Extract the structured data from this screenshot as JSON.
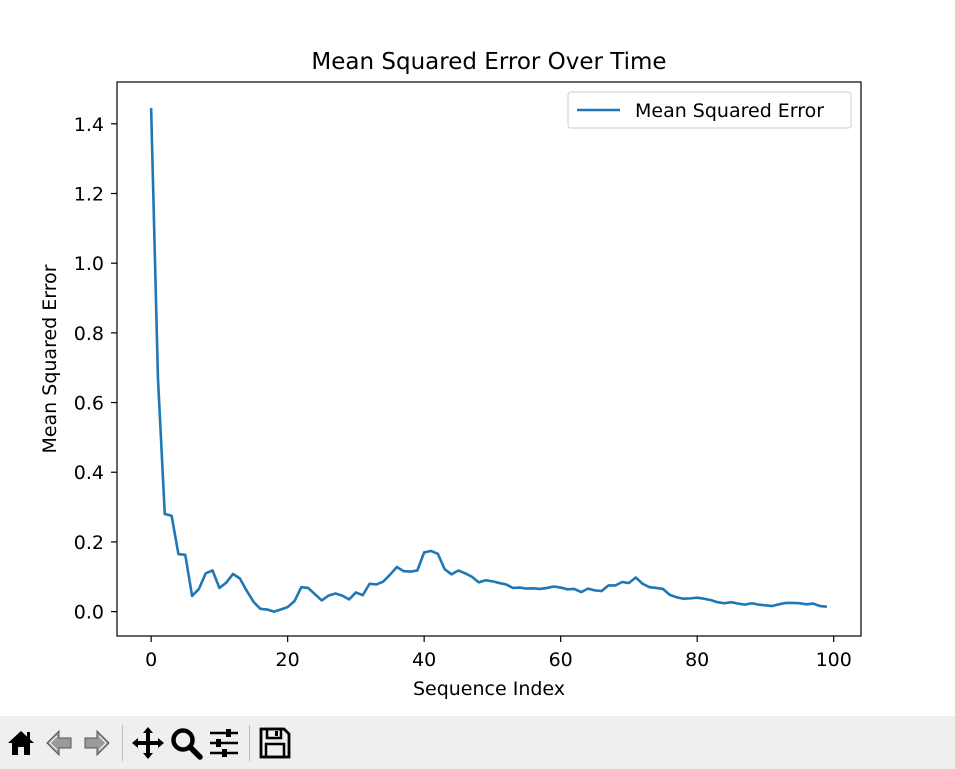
{
  "chart_data": {
    "type": "line",
    "title": "Mean Squared Error Over Time",
    "xlabel": "Sequence Index",
    "ylabel": "Mean Squared Error",
    "xlim": [
      -5,
      104
    ],
    "ylim": [
      -0.07,
      1.52
    ],
    "xticks": [
      0,
      20,
      40,
      60,
      80,
      100
    ],
    "yticks": [
      0.0,
      0.2,
      0.4,
      0.6,
      0.8,
      1.0,
      1.2,
      1.4
    ],
    "xtick_labels": [
      "0",
      "20",
      "40",
      "60",
      "80",
      "100"
    ],
    "ytick_labels": [
      "0.0",
      "0.2",
      "0.4",
      "0.6",
      "0.8",
      "1.0",
      "1.2",
      "1.4"
    ],
    "grid": false,
    "legend_position": "upper right",
    "series": [
      {
        "name": "Mean Squared Error",
        "color": "#1f77b4",
        "x": [
          0,
          1,
          2,
          3,
          4,
          5,
          6,
          7,
          8,
          9,
          10,
          11,
          12,
          13,
          14,
          15,
          16,
          17,
          18,
          19,
          20,
          21,
          22,
          23,
          24,
          25,
          26,
          27,
          28,
          29,
          30,
          31,
          32,
          33,
          34,
          35,
          36,
          37,
          38,
          39,
          40,
          41,
          42,
          43,
          44,
          45,
          46,
          47,
          48,
          49,
          50,
          51,
          52,
          53,
          54,
          55,
          56,
          57,
          58,
          59,
          60,
          61,
          62,
          63,
          64,
          65,
          66,
          67,
          68,
          69,
          70,
          71,
          72,
          73,
          74,
          75,
          76,
          77,
          78,
          79,
          80,
          81,
          82,
          83,
          84,
          85,
          86,
          87,
          88,
          89,
          90,
          91,
          92,
          93,
          94,
          95,
          96,
          97,
          98,
          99
        ],
        "y": [
          1.445,
          0.67,
          0.28,
          0.275,
          0.165,
          0.163,
          0.045,
          0.065,
          0.11,
          0.118,
          0.068,
          0.083,
          0.108,
          0.095,
          0.06,
          0.028,
          0.008,
          0.006,
          0.0,
          0.006,
          0.013,
          0.03,
          0.07,
          0.068,
          0.05,
          0.032,
          0.046,
          0.052,
          0.046,
          0.035,
          0.055,
          0.047,
          0.08,
          0.078,
          0.086,
          0.106,
          0.128,
          0.116,
          0.115,
          0.118,
          0.17,
          0.174,
          0.166,
          0.122,
          0.107,
          0.118,
          0.11,
          0.1,
          0.084,
          0.09,
          0.087,
          0.082,
          0.078,
          0.068,
          0.069,
          0.066,
          0.067,
          0.065,
          0.068,
          0.072,
          0.069,
          0.064,
          0.065,
          0.056,
          0.066,
          0.061,
          0.059,
          0.075,
          0.075,
          0.085,
          0.082,
          0.098,
          0.08,
          0.07,
          0.068,
          0.065,
          0.048,
          0.041,
          0.037,
          0.038,
          0.04,
          0.037,
          0.033,
          0.027,
          0.024,
          0.027,
          0.023,
          0.02,
          0.024,
          0.02,
          0.018,
          0.016,
          0.021,
          0.025,
          0.025,
          0.024,
          0.021,
          0.023,
          0.016,
          0.014
        ]
      }
    ]
  },
  "toolbar": {
    "buttons": [
      {
        "icon": "home-icon"
      },
      {
        "icon": "back-arrow-icon"
      },
      {
        "icon": "forward-arrow-icon"
      },
      {
        "icon": "pan-move-icon"
      },
      {
        "icon": "zoom-magnifier-icon"
      },
      {
        "icon": "configure-subplots-icon"
      },
      {
        "icon": "save-floppy-icon"
      }
    ]
  }
}
